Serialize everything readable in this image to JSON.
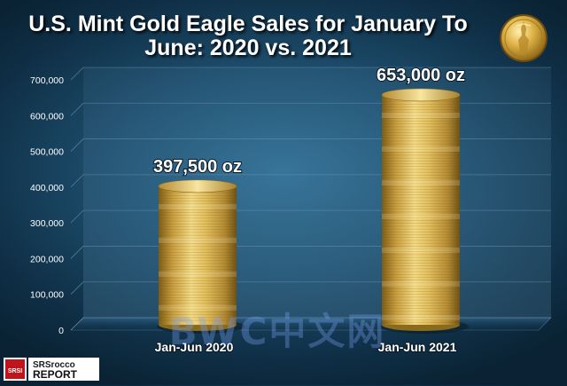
{
  "title_lines": [
    "U.S. Mint Gold Eagle Sales for January To",
    "June:  2020 vs. 2021"
  ],
  "watermark": "BWC中文网",
  "logo": {
    "line1": "SRSrocco",
    "line2": "REPORT",
    "badge": "SRSI"
  },
  "colors": {
    "gold_dark": "#8a6a1c",
    "gold_mid": "#d9b34e",
    "gold_light": "#f3da85",
    "label_text": "#ffffff",
    "tick_text": "#ffffff",
    "gridline": "#6f96b4"
  },
  "icons": {
    "coin": "gold-eagle-coin-icon",
    "logo": "srsrocco-logo-icon"
  },
  "chart_data": {
    "type": "bar",
    "title": "U.S. Mint Gold Eagle Sales for January To June:  2020 vs. 2021",
    "categories": [
      "Jan-Jun 2020",
      "Jan-Jun 2021"
    ],
    "values": [
      397500,
      653000
    ],
    "data_labels": [
      "397,500 oz",
      "653,000 oz"
    ],
    "y_ticks": [
      0,
      100000,
      200000,
      300000,
      400000,
      500000,
      600000,
      700000
    ],
    "y_tick_labels": [
      "0",
      "100,000",
      "200,000",
      "300,000",
      "400,000",
      "500,000",
      "600,000",
      "700,000"
    ],
    "ylim": [
      0,
      700000
    ],
    "xlabel": "",
    "ylabel": "",
    "grid": true,
    "legend": "none"
  }
}
